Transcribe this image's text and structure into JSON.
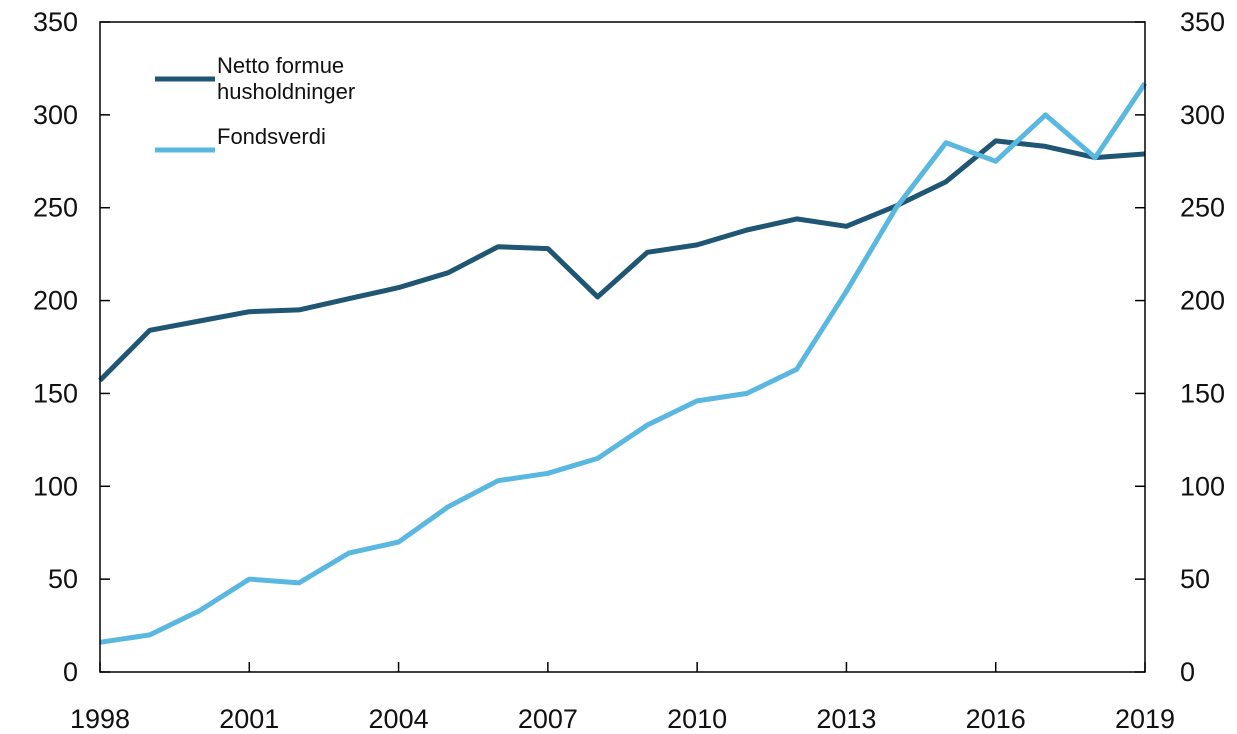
{
  "chart_data": {
    "type": "line",
    "title": "",
    "xlabel": "",
    "ylabel": "",
    "x": [
      1998,
      1999,
      2000,
      2001,
      2002,
      2003,
      2004,
      2005,
      2006,
      2007,
      2008,
      2009,
      2010,
      2011,
      2012,
      2013,
      2014,
      2015,
      2016,
      2017,
      2018,
      2019
    ],
    "xlim": [
      1998,
      2019
    ],
    "ylim": [
      0,
      350
    ],
    "xticks": [
      "1998",
      "2001",
      "2004",
      "2007",
      "2010",
      "2013",
      "2016",
      "2019"
    ],
    "yticks": [
      "0",
      "50",
      "100",
      "150",
      "200",
      "250",
      "300",
      "350"
    ],
    "secondary_yticks": [
      "0",
      "50",
      "100",
      "150",
      "200",
      "250",
      "300",
      "350"
    ],
    "grid": false,
    "legend_position": "top-left",
    "series": [
      {
        "name": "Netto formue husholdninger",
        "name_lines": [
          "Netto formue",
          "husholdninger"
        ],
        "color": "#1f5673",
        "values": [
          157,
          184,
          189,
          194,
          195,
          201,
          207,
          215,
          229,
          228,
          202,
          226,
          230,
          238,
          244,
          240,
          251,
          264,
          286,
          283,
          277,
          279
        ]
      },
      {
        "name": "Fondsverdi",
        "name_lines": [
          "Fondsverdi"
        ],
        "color": "#5ab8e0",
        "values": [
          16,
          20,
          33,
          50,
          48,
          64,
          70,
          89,
          103,
          107,
          115,
          133,
          146,
          150,
          163,
          205,
          250,
          285,
          275,
          300,
          277,
          317
        ]
      }
    ]
  }
}
